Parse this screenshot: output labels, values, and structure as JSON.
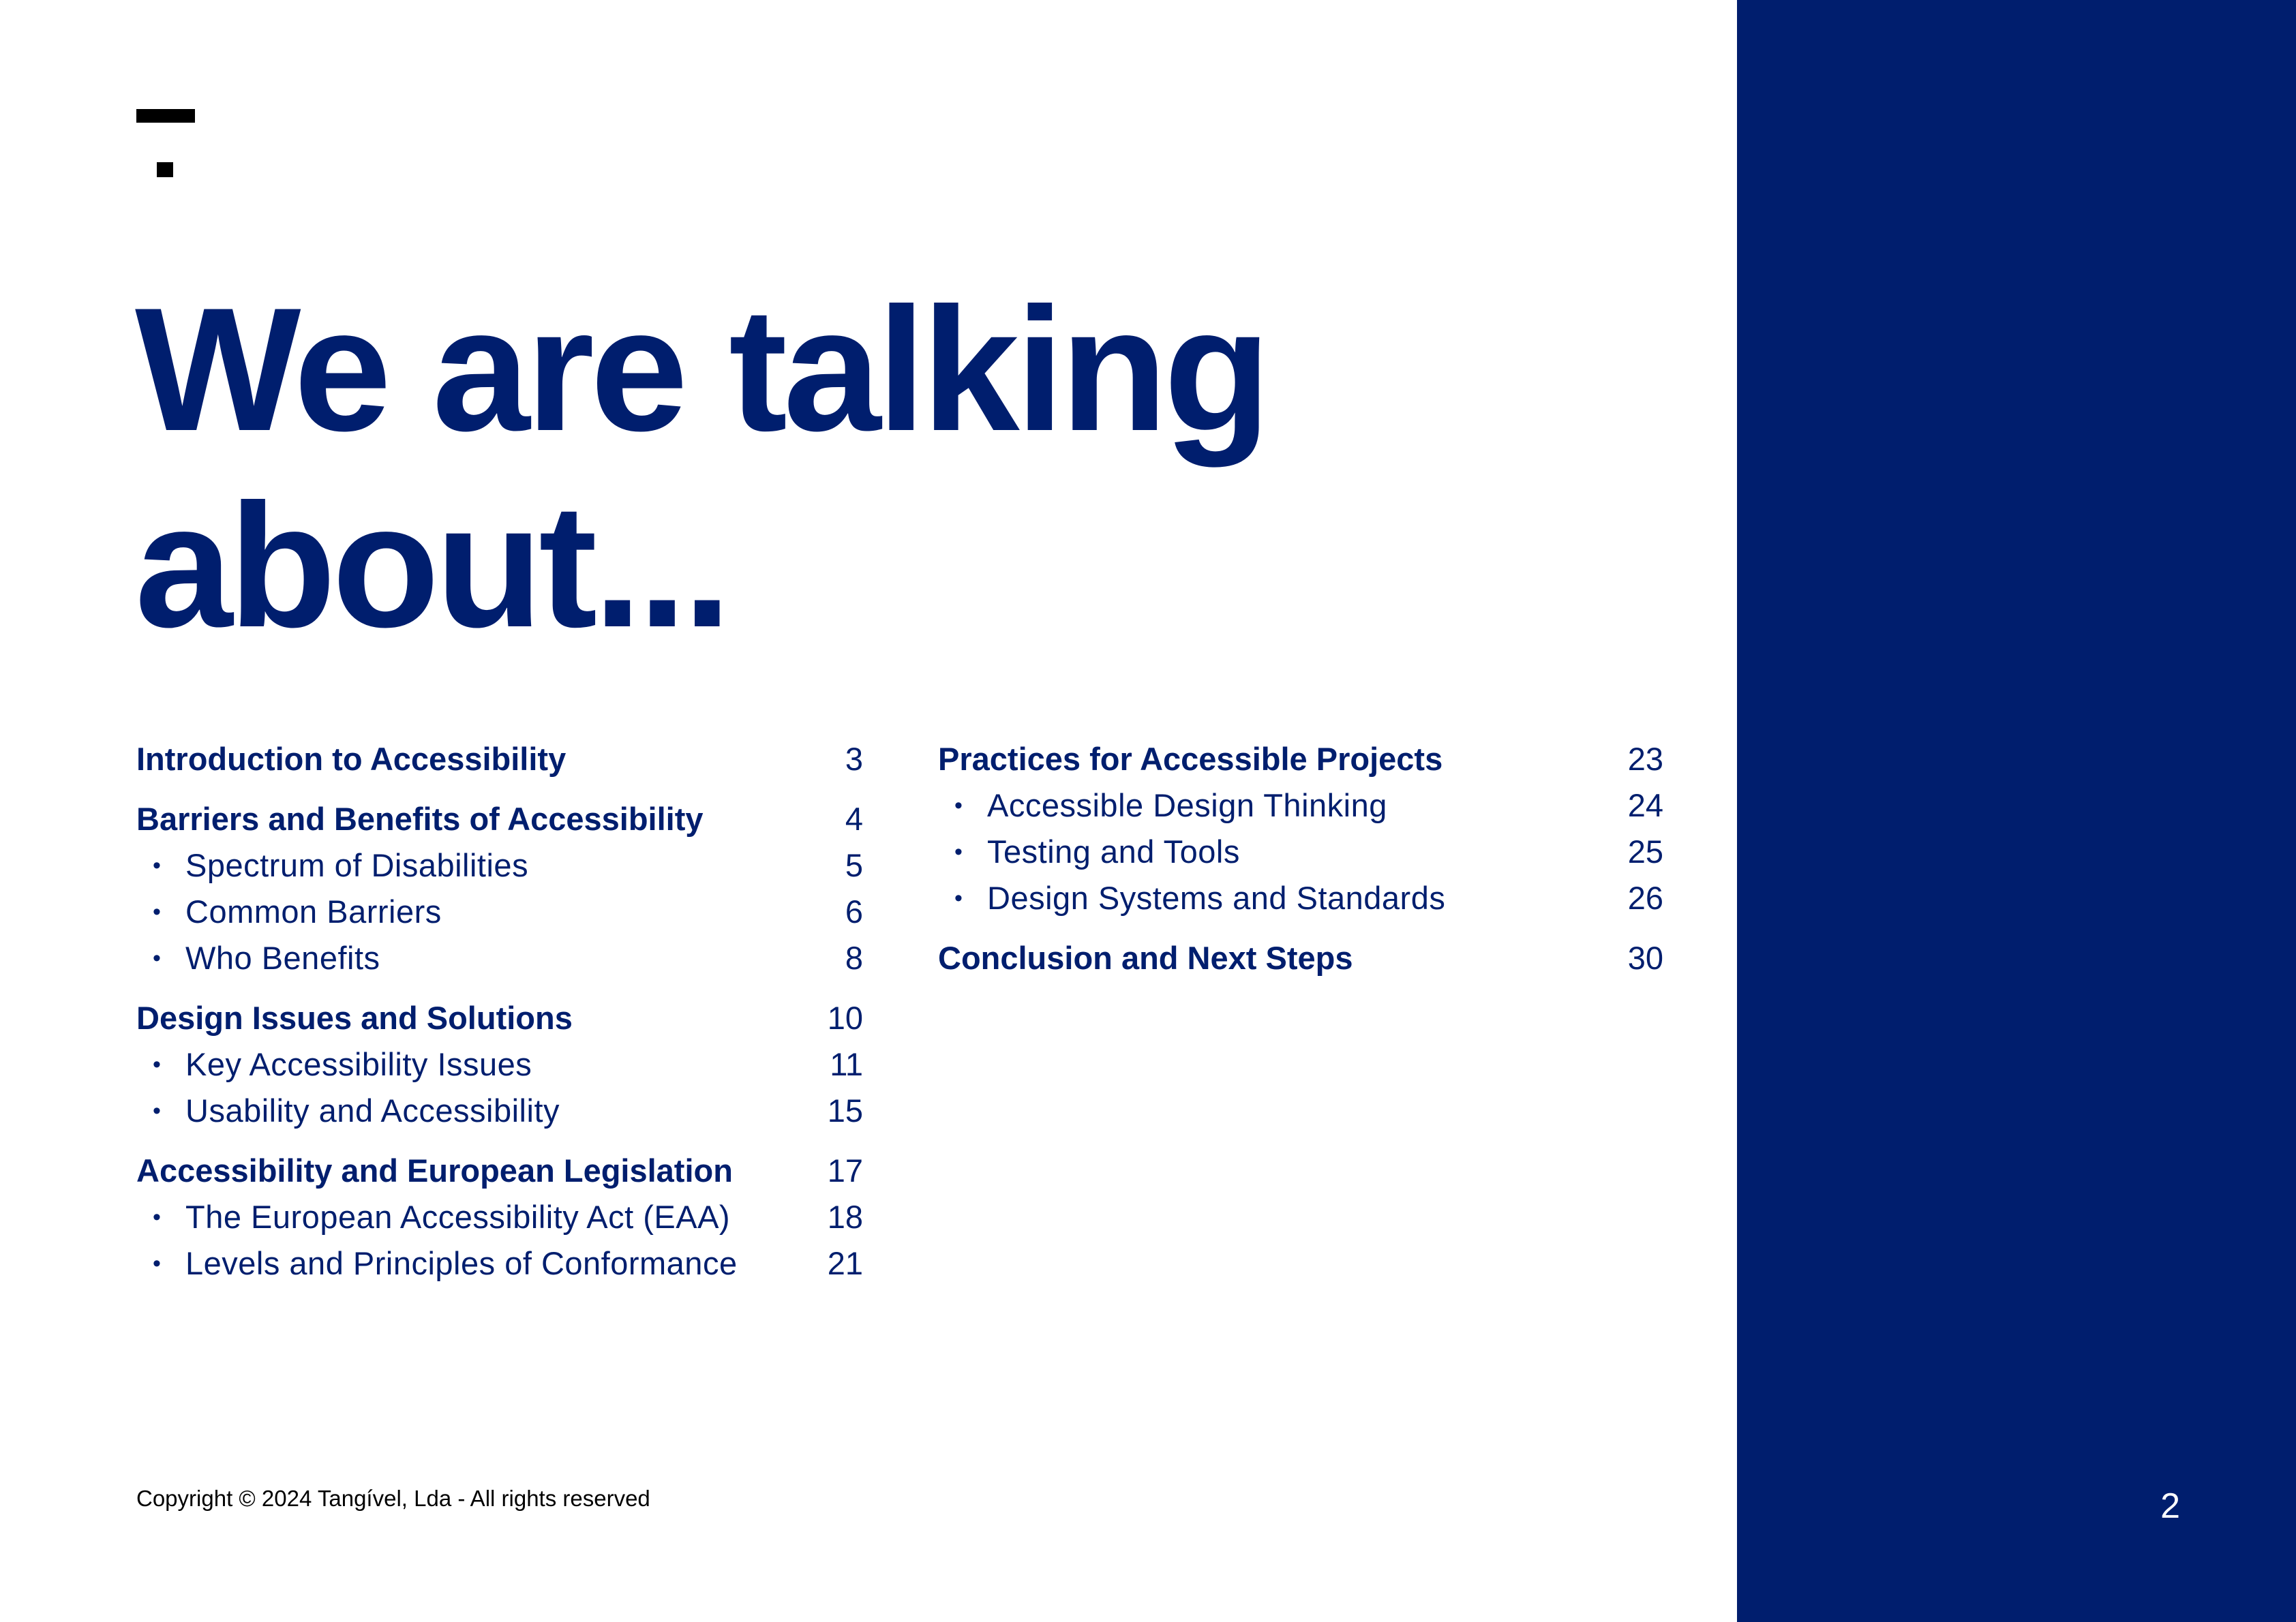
{
  "logo": {
    "icon": "brand-mark-icon"
  },
  "title": "We are talking about...",
  "toc": {
    "left": [
      {
        "type": "section",
        "label": "Introduction to Accessibility",
        "page": "3"
      },
      {
        "type": "section",
        "label": "Barriers and Benefits of Accessibility",
        "page": "4"
      },
      {
        "type": "sub",
        "label": "Spectrum of Disabilities",
        "page": "5"
      },
      {
        "type": "sub",
        "label": "Common Barriers",
        "page": "6"
      },
      {
        "type": "sub",
        "label": "Who Benefits",
        "page": "8"
      },
      {
        "type": "section",
        "label": "Design Issues and Solutions",
        "page": "10"
      },
      {
        "type": "sub",
        "label": "Key Accessibility Issues",
        "page": "11"
      },
      {
        "type": "sub",
        "label": "Usability and Accessibility",
        "page": "15"
      },
      {
        "type": "section",
        "label": "Accessibility and European Legislation",
        "page": "17"
      },
      {
        "type": "sub",
        "label": "The European Accessibility Act (EAA)",
        "page": "18"
      },
      {
        "type": "sub",
        "label": "Levels and Principles of Conformance",
        "page": "21"
      }
    ],
    "right": [
      {
        "type": "section",
        "label": "Practices for Accessible Projects",
        "page": "23"
      },
      {
        "type": "sub",
        "label": "Accessible Design Thinking",
        "page": "24"
      },
      {
        "type": "sub",
        "label": "Testing and Tools",
        "page": "25"
      },
      {
        "type": "sub",
        "label": "Design Systems and Standards",
        "page": "26"
      },
      {
        "type": "section",
        "label": "Conclusion and Next Steps",
        "page": "30"
      }
    ]
  },
  "bullet": "•",
  "footer": {
    "copyright": "Copyright © 2024 Tangível, Lda - All rights reserved"
  },
  "page_number": "2",
  "colors": {
    "brand_navy": "#001e6e",
    "background": "#ffffff",
    "logo": "#000000"
  }
}
